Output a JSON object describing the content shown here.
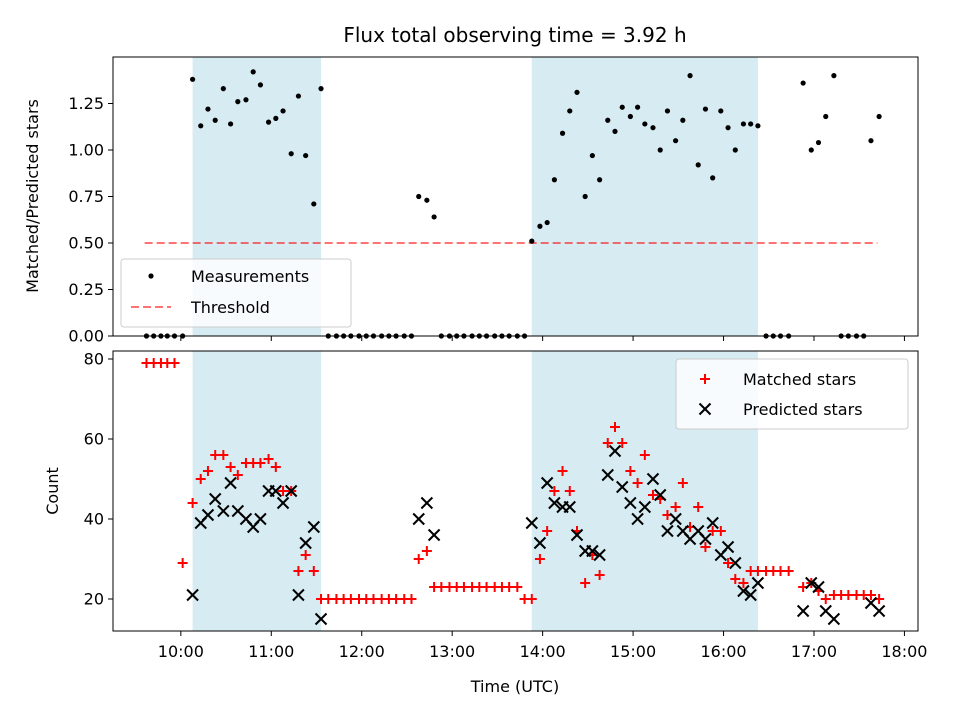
{
  "figure": {
    "title": "Flux total observing time = 3.92 h",
    "xlabel": "Time (UTC)",
    "x_ticks": [
      "10:00",
      "11:00",
      "12:00",
      "13:00",
      "14:00",
      "15:00",
      "16:00",
      "17:00",
      "18:00"
    ]
  },
  "chart_data": [
    {
      "type": "scatter",
      "panel": "top",
      "ylabel": "Matched/Predicted stars",
      "xlim_hours": [
        9.25,
        18.15
      ],
      "ylim": [
        0,
        1.5
      ],
      "y_ticks": [
        "0.00",
        "0.25",
        "0.50",
        "0.75",
        "1.00",
        "1.25"
      ],
      "shaded_intervals_hours": [
        [
          10.13,
          11.55
        ],
        [
          13.88,
          16.38
        ]
      ],
      "threshold": 0.5,
      "threshold_range_hours": [
        9.6,
        17.7
      ],
      "legend": {
        "position": "lower-left",
        "entries": [
          "Measurements",
          "Threshold"
        ]
      },
      "series": [
        {
          "name": "Measurements",
          "color": "#000000",
          "x_hours": [
            9.62,
            9.7,
            9.78,
            9.85,
            9.93,
            10.02,
            10.13,
            10.22,
            10.3,
            10.38,
            10.47,
            10.55,
            10.63,
            10.72,
            10.8,
            10.88,
            10.97,
            11.05,
            11.13,
            11.22,
            11.3,
            11.38,
            11.47,
            11.55,
            11.63,
            11.72,
            11.8,
            11.88,
            11.97,
            12.05,
            12.13,
            12.22,
            12.3,
            12.38,
            12.47,
            12.55,
            12.63,
            12.72,
            12.8,
            12.88,
            12.97,
            13.05,
            13.13,
            13.22,
            13.3,
            13.38,
            13.47,
            13.55,
            13.63,
            13.72,
            13.8,
            13.88,
            13.97,
            14.05,
            14.13,
            14.22,
            14.3,
            14.38,
            14.47,
            14.55,
            14.63,
            14.72,
            14.8,
            14.88,
            14.97,
            15.05,
            15.13,
            15.22,
            15.3,
            15.38,
            15.47,
            15.55,
            15.63,
            15.72,
            15.8,
            15.88,
            15.97,
            16.05,
            16.13,
            16.22,
            16.3,
            16.38,
            16.47,
            16.55,
            16.63,
            16.72,
            16.88,
            16.97,
            17.05,
            17.13,
            17.22,
            17.3,
            17.38,
            17.47,
            17.55,
            17.63,
            17.72
          ],
          "y": [
            0,
            0,
            0,
            0,
            0,
            0,
            1.38,
            1.13,
            1.22,
            1.16,
            1.33,
            1.14,
            1.26,
            1.27,
            1.42,
            1.35,
            1.15,
            1.17,
            1.21,
            0.98,
            1.29,
            0.97,
            0.71,
            1.33,
            0,
            0,
            0,
            0,
            0,
            0,
            0,
            0,
            0,
            0,
            0,
            0,
            0.75,
            0.73,
            0.64,
            0,
            0,
            0,
            0,
            0,
            0,
            0,
            0,
            0,
            0,
            0,
            0,
            0.51,
            0.59,
            0.61,
            0.84,
            1.09,
            1.21,
            1.31,
            0.75,
            0.97,
            0.84,
            1.16,
            1.1,
            1.23,
            1.18,
            1.23,
            1.14,
            1.12,
            1.0,
            1.21,
            1.05,
            1.16,
            1.4,
            0.92,
            1.22,
            0.85,
            1.21,
            1.12,
            1.0,
            1.14,
            1.14,
            1.13,
            0,
            0,
            0,
            0,
            1.36,
            1.0,
            1.04,
            1.18,
            1.4,
            0,
            0,
            0,
            0,
            1.05,
            1.18
          ]
        }
      ]
    },
    {
      "type": "scatter",
      "panel": "bottom",
      "ylabel": "Count",
      "xlim_hours": [
        9.25,
        18.15
      ],
      "ylim": [
        12,
        82
      ],
      "y_ticks": [
        "20",
        "40",
        "60",
        "80"
      ],
      "shaded_intervals_hours": [
        [
          10.13,
          11.55
        ],
        [
          13.88,
          16.38
        ]
      ],
      "legend": {
        "position": "upper-right",
        "entries": [
          "Matched stars",
          "Predicted stars"
        ]
      },
      "series": [
        {
          "name": "Matched stars",
          "marker": "plus",
          "color": "#ff0000",
          "x_hours": [
            9.62,
            9.7,
            9.78,
            9.85,
            9.93,
            10.02,
            10.13,
            10.22,
            10.3,
            10.38,
            10.47,
            10.55,
            10.63,
            10.72,
            10.8,
            10.88,
            10.97,
            11.05,
            11.13,
            11.22,
            11.3,
            11.38,
            11.47,
            11.55,
            11.63,
            11.72,
            11.8,
            11.88,
            11.97,
            12.05,
            12.13,
            12.22,
            12.3,
            12.38,
            12.47,
            12.55,
            12.63,
            12.72,
            12.8,
            12.88,
            12.97,
            13.05,
            13.13,
            13.22,
            13.3,
            13.38,
            13.47,
            13.55,
            13.63,
            13.72,
            13.8,
            13.88,
            13.97,
            14.05,
            14.13,
            14.22,
            14.3,
            14.38,
            14.47,
            14.55,
            14.63,
            14.72,
            14.8,
            14.88,
            14.97,
            15.05,
            15.13,
            15.22,
            15.3,
            15.38,
            15.47,
            15.55,
            15.63,
            15.72,
            15.8,
            15.88,
            15.97,
            16.05,
            16.13,
            16.22,
            16.3,
            16.38,
            16.47,
            16.55,
            16.63,
            16.72,
            16.88,
            16.97,
            17.05,
            17.13,
            17.22,
            17.3,
            17.38,
            17.47,
            17.55,
            17.63,
            17.72
          ],
          "y": [
            79,
            79,
            79,
            79,
            79,
            29,
            44,
            50,
            52,
            56,
            56,
            53,
            51,
            54,
            54,
            54,
            55,
            53,
            47,
            47,
            27,
            31,
            27,
            20,
            20,
            20,
            20,
            20,
            20,
            20,
            20,
            20,
            20,
            20,
            20,
            20,
            30,
            32,
            23,
            23,
            23,
            23,
            23,
            23,
            23,
            23,
            23,
            23,
            23,
            23,
            20,
            20,
            30,
            37,
            47,
            52,
            47,
            37,
            24,
            31,
            26,
            59,
            63,
            59,
            52,
            49,
            56,
            46,
            45,
            41,
            43,
            49,
            38,
            43,
            33,
            37,
            37,
            29,
            25,
            24,
            27,
            27,
            27,
            27,
            27,
            27,
            23,
            24,
            22,
            20,
            21,
            21,
            21,
            21,
            21,
            21,
            20
          ]
        },
        {
          "name": "Predicted stars",
          "marker": "x",
          "color": "#000000",
          "x_hours": [
            10.13,
            10.22,
            10.3,
            10.38,
            10.47,
            10.55,
            10.63,
            10.72,
            10.8,
            10.88,
            10.97,
            11.05,
            11.13,
            11.22,
            11.3,
            11.38,
            11.47,
            11.55,
            12.63,
            12.72,
            12.8,
            13.88,
            13.97,
            14.05,
            14.13,
            14.22,
            14.3,
            14.38,
            14.47,
            14.55,
            14.63,
            14.72,
            14.8,
            14.88,
            14.97,
            15.05,
            15.13,
            15.22,
            15.3,
            15.38,
            15.47,
            15.55,
            15.63,
            15.72,
            15.8,
            15.88,
            15.97,
            16.05,
            16.13,
            16.22,
            16.3,
            16.38,
            16.88,
            16.97,
            17.05,
            17.13,
            17.22,
            17.63,
            17.72
          ],
          "y": [
            21,
            39,
            41,
            45,
            42,
            49,
            42,
            40,
            38,
            40,
            47,
            47,
            44,
            47,
            21,
            34,
            38,
            15,
            40,
            44,
            36,
            39,
            34,
            49,
            44,
            43,
            43,
            36,
            32,
            32,
            31,
            51,
            57,
            48,
            44,
            40,
            43,
            50,
            46,
            37,
            40,
            37,
            35,
            37,
            35,
            39,
            31,
            33,
            29,
            22,
            21,
            24,
            17,
            24,
            23,
            17,
            15,
            19,
            17
          ]
        }
      ]
    }
  ]
}
